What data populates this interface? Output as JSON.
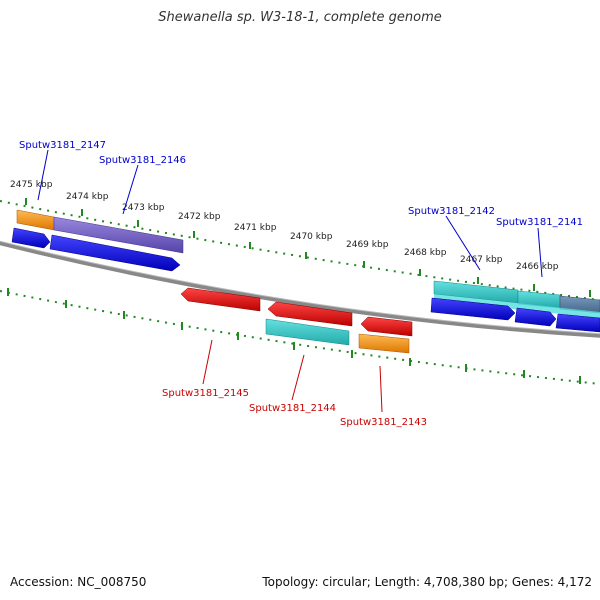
{
  "title": "Shewanella sp. W3-18-1, complete genome",
  "footer": {
    "accession": "Accession: NC_008750",
    "topology": "Topology: circular; Length: 4,708,380 bp; Genes: 4,172"
  },
  "colors": {
    "backbone": "#888888",
    "scale": "#228822",
    "forward_label": "#0000cc",
    "reverse_label": "#cc0000",
    "blue": "#1a1aee",
    "cyan": "#33cccc",
    "purple": "#7766cc",
    "orange": "#ff9922",
    "red": "#ee1111"
  },
  "scale_labels": [
    "2475 kbp",
    "2474 kbp",
    "2473 kbp",
    "2472 kbp",
    "2471 kbp",
    "2470 kbp",
    "2469 kbp",
    "2468 kbp",
    "2467 kbp",
    "2466 kbp"
  ],
  "gene_labels": {
    "top": [
      "Sputw3181_2147",
      "Sputw3181_2146",
      "Sputw3181_2142",
      "Sputw3181_2141"
    ],
    "bottom": [
      "Sputw3181_2145",
      "Sputw3181_2144",
      "Sputw3181_2143"
    ]
  }
}
